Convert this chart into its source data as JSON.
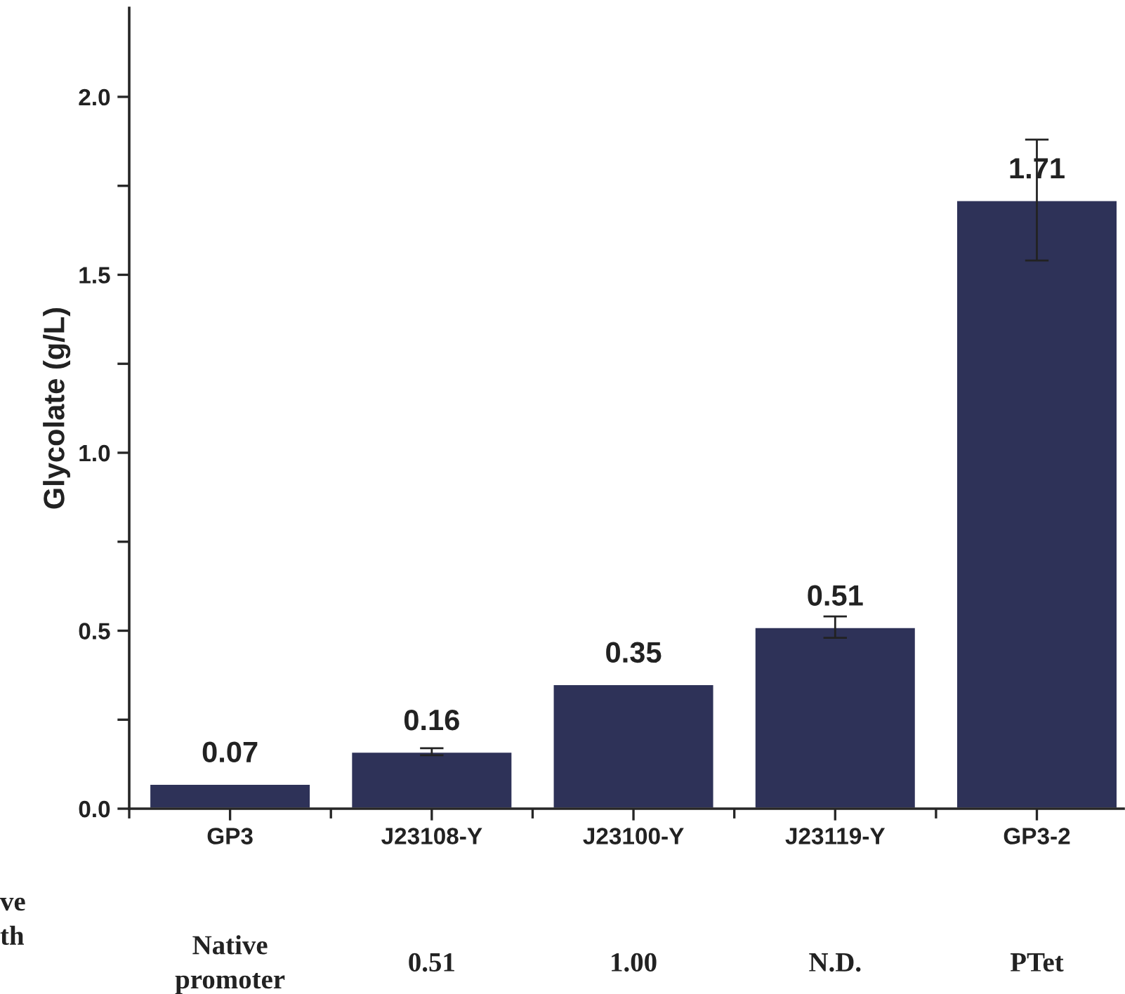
{
  "chart_data": {
    "type": "bar",
    "ylabel": "Glycolate (g/L)",
    "categories": [
      "GP3",
      "J23108-Y",
      "J23100-Y",
      "J23119-Y",
      "GP3-2"
    ],
    "values": [
      0.07,
      0.16,
      0.35,
      0.51,
      1.71
    ],
    "errors": [
      null,
      0.01,
      null,
      0.03,
      0.17
    ],
    "color": "#2e3258",
    "data_labels": true,
    "ylim": [
      0,
      2.25
    ],
    "yticks": [
      {
        "value": 0,
        "label": "0.0"
      },
      {
        "value": 0.25,
        "label": null
      },
      0.5,
      {
        "value": 0.75,
        "label": null
      },
      {
        "value": 1,
        "label": "1.0"
      },
      {
        "value": 1.25,
        "label": null
      },
      1.5,
      {
        "value": 1.75,
        "label": null
      },
      {
        "value": 2,
        "label": "2.0"
      }
    ],
    "annotations": [
      "ve\nth",
      "Native\npromoter",
      "0.51",
      "1.00",
      "N.D.",
      "PTet"
    ],
    "grid": false
  }
}
